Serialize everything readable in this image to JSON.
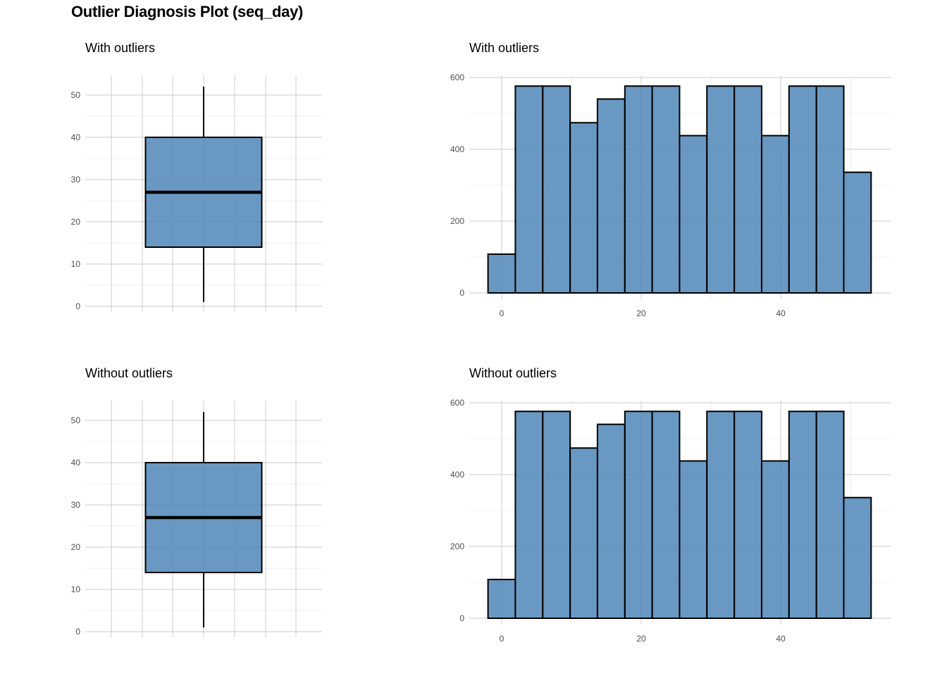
{
  "title": "Outlier Diagnosis Plot (seq_day)",
  "colors": {
    "fill": "#4f86b9",
    "outline": "#000000",
    "grid": "#c8c8c8"
  },
  "chart_data": [
    {
      "id": "box-with",
      "type": "boxplot",
      "title": "With outliers",
      "ylim": [
        0,
        55
      ],
      "yticks": [
        "0",
        "10",
        "20",
        "30",
        "40",
        "50"
      ],
      "stats": {
        "min": 1,
        "q1": 14,
        "median": 27,
        "q3": 40,
        "max": 52
      }
    },
    {
      "id": "hist-with",
      "type": "bar",
      "title": "With outliers",
      "xlim": [
        -5,
        55
      ],
      "ylim": [
        0,
        600
      ],
      "xticks": [
        "0",
        "20",
        "40"
      ],
      "yticks": [
        "0",
        "200",
        "400",
        "600"
      ],
      "bin_width": 3.92,
      "bin_centers": [
        0,
        3.92,
        7.85,
        11.77,
        15.69,
        19.62,
        23.54,
        27.46,
        31.38,
        35.31,
        39.23,
        43.15,
        47.08,
        51
      ],
      "values": [
        108,
        576,
        576,
        474,
        540,
        576,
        576,
        438,
        576,
        576,
        438,
        576,
        576,
        336
      ]
    },
    {
      "id": "box-without",
      "type": "boxplot",
      "title": "Without outliers",
      "ylim": [
        0,
        55
      ],
      "yticks": [
        "0",
        "10",
        "20",
        "30",
        "40",
        "50"
      ],
      "stats": {
        "min": 1,
        "q1": 14,
        "median": 27,
        "q3": 40,
        "max": 52
      }
    },
    {
      "id": "hist-without",
      "type": "bar",
      "title": "Without outliers",
      "xlim": [
        -5,
        55
      ],
      "ylim": [
        0,
        600
      ],
      "xticks": [
        "0",
        "20",
        "40"
      ],
      "yticks": [
        "0",
        "200",
        "400",
        "600"
      ],
      "bin_width": 3.92,
      "bin_centers": [
        0,
        3.92,
        7.85,
        11.77,
        15.69,
        19.62,
        23.54,
        27.46,
        31.38,
        35.31,
        39.23,
        43.15,
        47.08,
        51
      ],
      "values": [
        108,
        576,
        576,
        474,
        540,
        576,
        576,
        438,
        576,
        576,
        438,
        576,
        576,
        336
      ]
    }
  ]
}
